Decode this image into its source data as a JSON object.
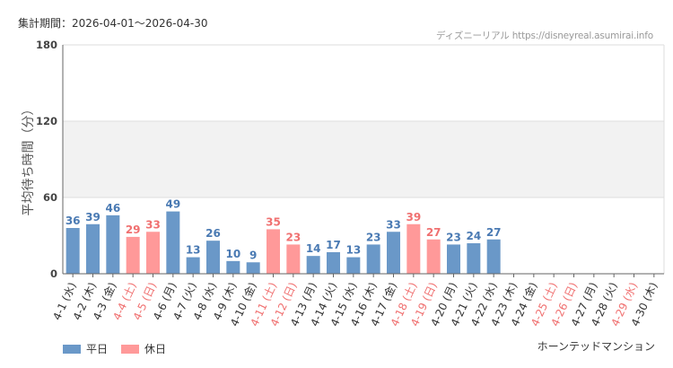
{
  "header": {
    "period_label": "集計期間：2026-04-01～2026-04-30",
    "source_label": "ディズニーリアル https://disneyreal.asumirai.info"
  },
  "footer": {
    "attraction_name": "ホーンテッドマンション"
  },
  "colors": {
    "weekday": "#6a98c8",
    "holiday": "#ff9999",
    "weekday_label": "#4a7ab3",
    "holiday_label": "#f07070",
    "band": "#f2f2f2",
    "grid": "#dddddd"
  },
  "chart_data": {
    "type": "bar",
    "ylabel": "平均待ち時間（分）",
    "ylim": [
      0,
      180
    ],
    "yticks": [
      0,
      60,
      120,
      180
    ],
    "shaded_band": [
      60,
      120
    ],
    "legend_position": "bottom-left",
    "legend": [
      {
        "key": "weekday",
        "label": "平日"
      },
      {
        "key": "holiday",
        "label": "休日"
      }
    ],
    "categories": [
      "4-1 (水)",
      "4-2 (木)",
      "4-3 (金)",
      "4-4 (土)",
      "4-5 (日)",
      "4-6 (月)",
      "4-7 (火)",
      "4-8 (水)",
      "4-9 (木)",
      "4-10 (金)",
      "4-11 (土)",
      "4-12 (日)",
      "4-13 (月)",
      "4-14 (火)",
      "4-15 (水)",
      "4-16 (木)",
      "4-17 (金)",
      "4-18 (土)",
      "4-19 (日)",
      "4-20 (月)",
      "4-21 (火)",
      "4-22 (水)",
      "4-23 (木)",
      "4-24 (金)",
      "4-25 (土)",
      "4-26 (日)",
      "4-27 (月)",
      "4-28 (火)",
      "4-29 (水)",
      "4-30 (木)"
    ],
    "values": [
      36,
      39,
      46,
      29,
      33,
      49,
      13,
      26,
      10,
      9,
      35,
      23,
      14,
      17,
      13,
      23,
      33,
      39,
      27,
      23,
      24,
      27,
      null,
      null,
      null,
      null,
      null,
      null,
      null,
      null
    ],
    "day_types": [
      "weekday",
      "weekday",
      "weekday",
      "holiday",
      "holiday",
      "weekday",
      "weekday",
      "weekday",
      "weekday",
      "weekday",
      "holiday",
      "holiday",
      "weekday",
      "weekday",
      "weekday",
      "weekday",
      "weekday",
      "holiday",
      "holiday",
      "weekday",
      "weekday",
      "weekday",
      "weekday",
      "weekday",
      "holiday",
      "holiday",
      "weekday",
      "weekday",
      "holiday",
      "weekday"
    ]
  }
}
